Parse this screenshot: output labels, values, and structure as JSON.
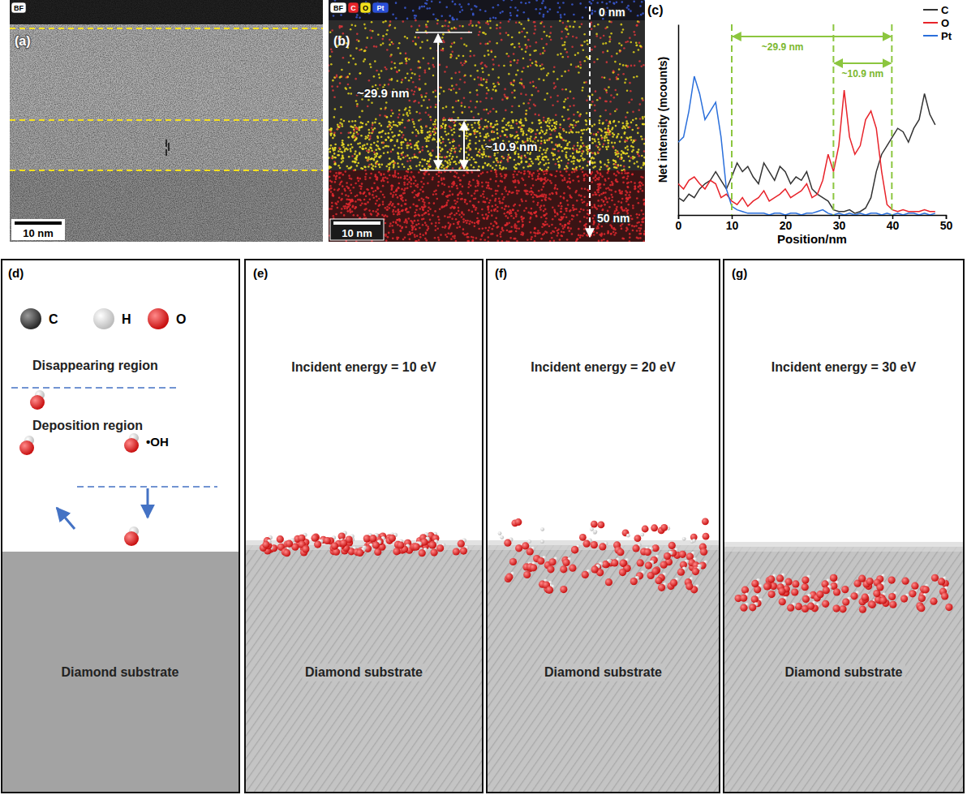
{
  "panels": {
    "a": {
      "label": "(a)",
      "badge": "BF",
      "scale_bar": "10 nm"
    },
    "b": {
      "label": "(b)",
      "badges": [
        "BF",
        "C",
        "O",
        "Pt"
      ],
      "thickness_total": "~29.9 nm",
      "thickness_oxide": "~10.9 nm",
      "depth_start": "0 nm",
      "depth_end": "50 nm",
      "scale_bar": "10 nm"
    },
    "c": {
      "label": "(c)"
    },
    "d": {
      "label": "(d)",
      "legend": [
        "C",
        "H",
        "O"
      ],
      "regions": [
        "Disappearing region",
        "Deposition region"
      ],
      "species": "•OH",
      "substrate": "Diamond substrate"
    },
    "e": {
      "label": "(e)",
      "title": "Incident energy = 10 eV",
      "substrate": "Diamond substrate"
    },
    "f": {
      "label": "(f)",
      "title": "Incident energy = 20 eV",
      "substrate": "Diamond substrate"
    },
    "g": {
      "label": "(g)",
      "title": "Incident energy = 30 eV",
      "substrate": "Diamond substrate"
    }
  },
  "chart_data": {
    "type": "line",
    "x": [
      0,
      1,
      2,
      3,
      4,
      5,
      6,
      7,
      8,
      9,
      10,
      11,
      12,
      13,
      14,
      15,
      16,
      17,
      18,
      19,
      20,
      21,
      22,
      23,
      24,
      25,
      26,
      27,
      28,
      29,
      30,
      31,
      32,
      33,
      34,
      35,
      36,
      37,
      38,
      39,
      40,
      41,
      42,
      43,
      44,
      45,
      46,
      47,
      48
    ],
    "series": [
      {
        "name": "C",
        "color": "#333333",
        "values": [
          10,
          8,
          12,
          10,
          15,
          18,
          20,
          25,
          20,
          15,
          22,
          30,
          25,
          28,
          22,
          18,
          30,
          25,
          20,
          28,
          25,
          18,
          22,
          20,
          25,
          15,
          12,
          10,
          8,
          3,
          2,
          2,
          3,
          1,
          2,
          4,
          10,
          25,
          35,
          40,
          45,
          50,
          48,
          42,
          50,
          55,
          70,
          58,
          52
        ]
      },
      {
        "name": "O",
        "color": "#e8232a",
        "values": [
          18,
          15,
          20,
          22,
          18,
          15,
          20,
          18,
          10,
          12,
          8,
          6,
          10,
          5,
          8,
          10,
          14,
          8,
          10,
          12,
          15,
          10,
          12,
          14,
          18,
          10,
          12,
          20,
          35,
          25,
          40,
          72,
          45,
          35,
          40,
          55,
          60,
          50,
          25,
          6,
          3,
          2,
          3,
          2,
          2,
          2,
          3,
          2,
          2
        ]
      },
      {
        "name": "Pt",
        "color": "#2a6fdb",
        "values": [
          42,
          45,
          60,
          80,
          70,
          55,
          60,
          65,
          45,
          15,
          5,
          3,
          2,
          1,
          1,
          1,
          1,
          0,
          1,
          1,
          0,
          1,
          1,
          0,
          1,
          1,
          2,
          3,
          1,
          0,
          1,
          0,
          1,
          0,
          1,
          0,
          1,
          1,
          0,
          1,
          0,
          1,
          0,
          1,
          1,
          0,
          1,
          0,
          1
        ]
      }
    ],
    "xlim": [
      0,
      50
    ],
    "xticks": [
      0,
      10,
      20,
      30,
      40,
      50
    ],
    "ylim": [
      0,
      110
    ],
    "x_label": "Position/nm",
    "y_label": "Net intensity (mcounts)",
    "tick_labels": "x",
    "legend": "upper right",
    "annotations": [
      {
        "text": "~29.9 nm",
        "x0": 10,
        "x1": 39.9
      },
      {
        "text": "~10.9 nm",
        "x0": 29,
        "x1": 39.9
      }
    ]
  }
}
